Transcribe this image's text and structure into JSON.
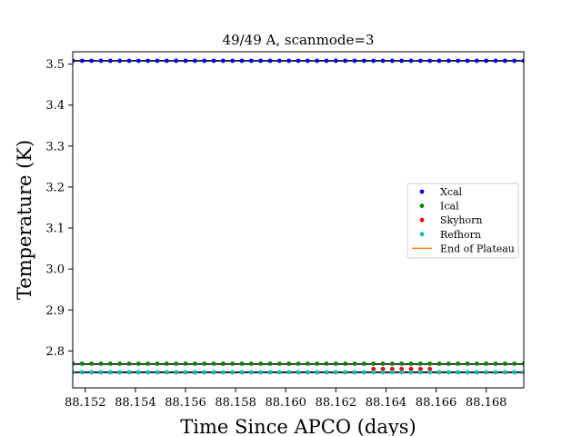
{
  "chart_data": {
    "type": "scatter",
    "title": "49/49 A, scanmode=3",
    "xlabel": "Time Since APCO (days)",
    "ylabel": "Temperature (K)",
    "xlim": [
      88.1515,
      88.1695
    ],
    "ylim": [
      2.71,
      3.53
    ],
    "x_ticks": [
      88.152,
      88.154,
      88.156,
      88.158,
      88.16,
      88.162,
      88.164,
      88.166,
      88.168
    ],
    "x_tick_labels": [
      "88.152",
      "88.154",
      "88.156",
      "88.158",
      "88.160",
      "88.162",
      "88.164",
      "88.166",
      "88.168"
    ],
    "y_ticks": [
      2.8,
      2.9,
      3.0,
      3.1,
      3.2,
      3.3,
      3.4,
      3.5
    ],
    "y_tick_labels": [
      "2.8",
      "2.9",
      "3.0",
      "3.1",
      "3.2",
      "3.3",
      "3.4",
      "3.5"
    ],
    "legend_position": "center-right",
    "grid": false,
    "x_sampling": {
      "start": 88.1515,
      "end": 88.1695,
      "count": 49
    },
    "series": [
      {
        "name": "Xcal",
        "color": "#0000ff",
        "marker": "dot",
        "value": 3.508,
        "fit_line": 3.508
      },
      {
        "name": "Ical",
        "color": "#008000",
        "marker": "dot",
        "value": 2.769,
        "fit_line": 2.768
      },
      {
        "name": "Skyhorn",
        "color": "#ff0000",
        "marker": "dot",
        "value": 2.748,
        "fit_line": 2.748,
        "bump": {
          "x_start": 88.1634,
          "x_end": 88.1658,
          "value": 2.756
        }
      },
      {
        "name": "Refhorn",
        "color": "#00bfbf",
        "marker": "dot",
        "value": 2.748,
        "fit_line": 2.748
      },
      {
        "name": "End of Plateau",
        "color": "#ff7f0e",
        "marker": "line"
      }
    ]
  }
}
